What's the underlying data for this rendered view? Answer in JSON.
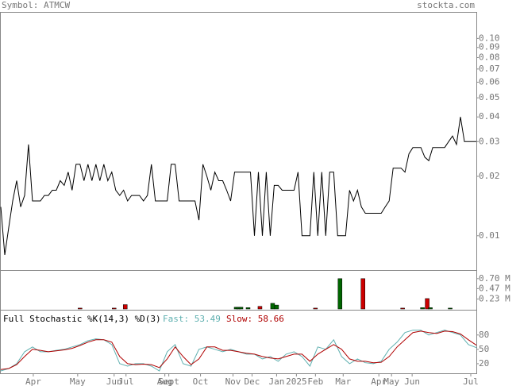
{
  "header": {
    "symbol": "Symbol: ATMCW",
    "site": "stockta.com"
  },
  "chart_data": [
    {
      "type": "line",
      "log_scale": true,
      "color": "#000000",
      "values": [
        0.014,
        0.008,
        0.011,
        0.015,
        0.019,
        0.014,
        0.016,
        0.029,
        0.015,
        0.015,
        0.015,
        0.016,
        0.016,
        0.017,
        0.017,
        0.019,
        0.018,
        0.021,
        0.017,
        0.023,
        0.023,
        0.019,
        0.023,
        0.019,
        0.023,
        0.019,
        0.023,
        0.019,
        0.021,
        0.017,
        0.016,
        0.017,
        0.015,
        0.016,
        0.016,
        0.016,
        0.015,
        0.016,
        0.023,
        0.015,
        0.015,
        0.015,
        0.015,
        0.023,
        0.023,
        0.015,
        0.015,
        0.015,
        0.015,
        0.015,
        0.012,
        0.023,
        0.02,
        0.017,
        0.021,
        0.019,
        0.019,
        0.017,
        0.015,
        0.021,
        0.021,
        0.021,
        0.021,
        0.021,
        0.01,
        0.021,
        0.01,
        0.021,
        0.01,
        0.018,
        0.018,
        0.017,
        0.017,
        0.017,
        0.017,
        0.021,
        0.01,
        0.01,
        0.01,
        0.021,
        0.01,
        0.021,
        0.01,
        0.021,
        0.021,
        0.01,
        0.01,
        0.01,
        0.017,
        0.015,
        0.017,
        0.014,
        0.013,
        0.013,
        0.013,
        0.013,
        0.013,
        0.014,
        0.015,
        0.022,
        0.022,
        0.022,
        0.021,
        0.026,
        0.028,
        0.028,
        0.028,
        0.025,
        0.024,
        0.028,
        0.028,
        0.028,
        0.028,
        0.03,
        0.032,
        0.029,
        0.04,
        0.03,
        0.03,
        0.03,
        0.03
      ],
      "xlim": [
        0,
        120
      ],
      "ylim": [
        0.0067,
        0.135
      ],
      "yticks": [
        0.01,
        0.02,
        0.03,
        0.04,
        0.05,
        0.06,
        0.07,
        0.08,
        0.09,
        {
          "value": 0.1,
          "label": "0.10"
        }
      ]
    },
    {
      "type": "bar",
      "x": [
        20,
        28.6,
        31.4,
        59.4,
        60,
        60.6,
        62.4,
        65.4,
        68.6,
        69.6,
        79.4,
        85.6,
        91.4,
        101.4,
        106.4,
        107.6,
        108.4,
        113.4
      ],
      "values": [
        0.02,
        0.02,
        0.1,
        0.04,
        0.04,
        0.04,
        0.03,
        0.06,
        0.13,
        0.09,
        0.02,
        0.7,
        0.7,
        0.02,
        0.03,
        0.24,
        0.03,
        0.02
      ],
      "colors": [
        "#cc0000",
        "#cc0000",
        "#cc0000",
        "#006600",
        "#006600",
        "#006600",
        "#006600",
        "#cc0000",
        "#006600",
        "#006600",
        "#cc0000",
        "#006600",
        "#cc0000",
        "#cc0000",
        "#006600",
        "#cc0000",
        "#006600",
        "#006600"
      ],
      "xlim": [
        0,
        120
      ],
      "ylim": [
        0,
        0.88
      ],
      "yticks": [
        {
          "value": 0.7,
          "label": "0.70 M"
        },
        {
          "value": 0.47,
          "label": "0.47 M"
        },
        {
          "value": 0.23,
          "label": "0.23 M"
        }
      ]
    },
    {
      "type": "line",
      "title": "Full Stochastic %K(14,3) %D(3)",
      "series": [
        {
          "name": "Fast: 53.49",
          "color": "#5fb0b0",
          "values": [
            5,
            10,
            20,
            45,
            55,
            45,
            45,
            48,
            50,
            55,
            60,
            68,
            72,
            70,
            60,
            20,
            15,
            20,
            20,
            15,
            5,
            45,
            60,
            20,
            15,
            50,
            55,
            50,
            45,
            50,
            45,
            40,
            40,
            30,
            35,
            25,
            40,
            45,
            35,
            15,
            55,
            50,
            70,
            35,
            20,
            30,
            22,
            20,
            25,
            50,
            65,
            85,
            90,
            90,
            80,
            85,
            90,
            85,
            80,
            60,
            53.49
          ]
        },
        {
          "name": "Slow: 58.66",
          "color": "#b00000",
          "values": [
            8,
            10,
            18,
            35,
            50,
            48,
            45,
            47,
            49,
            52,
            58,
            65,
            70,
            70,
            65,
            35,
            20,
            18,
            19,
            18,
            12,
            30,
            55,
            35,
            18,
            30,
            55,
            55,
            48,
            48,
            45,
            42,
            40,
            35,
            32,
            30,
            35,
            40,
            40,
            25,
            40,
            50,
            60,
            50,
            30,
            25,
            25,
            22,
            23,
            35,
            55,
            70,
            85,
            88,
            85,
            83,
            88,
            87,
            82,
            70,
            58.66
          ]
        }
      ],
      "xlim": [
        0,
        60
      ],
      "ylim": [
        0,
        131
      ],
      "yticks": [
        80,
        50,
        20
      ],
      "xticks": [
        {
          "value": 4.1,
          "label": "Apr"
        },
        {
          "value": 9.7,
          "label": "May"
        },
        {
          "value": 14.3,
          "label": "Jun"
        },
        {
          "value": 15.8,
          "label": "Jul"
        },
        {
          "value": 20.7,
          "label": "Aug"
        },
        {
          "value": 21.2,
          "label": "Sept"
        },
        {
          "value": 25.2,
          "label": "Oct"
        },
        {
          "value": 29.3,
          "label": "Nov"
        },
        {
          "value": 31.7,
          "label": "Dec"
        },
        {
          "value": 34.8,
          "label": "Jan"
        },
        {
          "value": 37.3,
          "label": "2025"
        },
        {
          "value": 39.7,
          "label": "Feb"
        },
        {
          "value": 43.2,
          "label": "Mar"
        },
        {
          "value": 47.7,
          "label": "Apr"
        },
        {
          "value": 49.3,
          "label": "May"
        },
        {
          "value": 51.9,
          "label": "Jun"
        },
        {
          "value": 59.3,
          "label": "Jul"
        }
      ]
    }
  ]
}
